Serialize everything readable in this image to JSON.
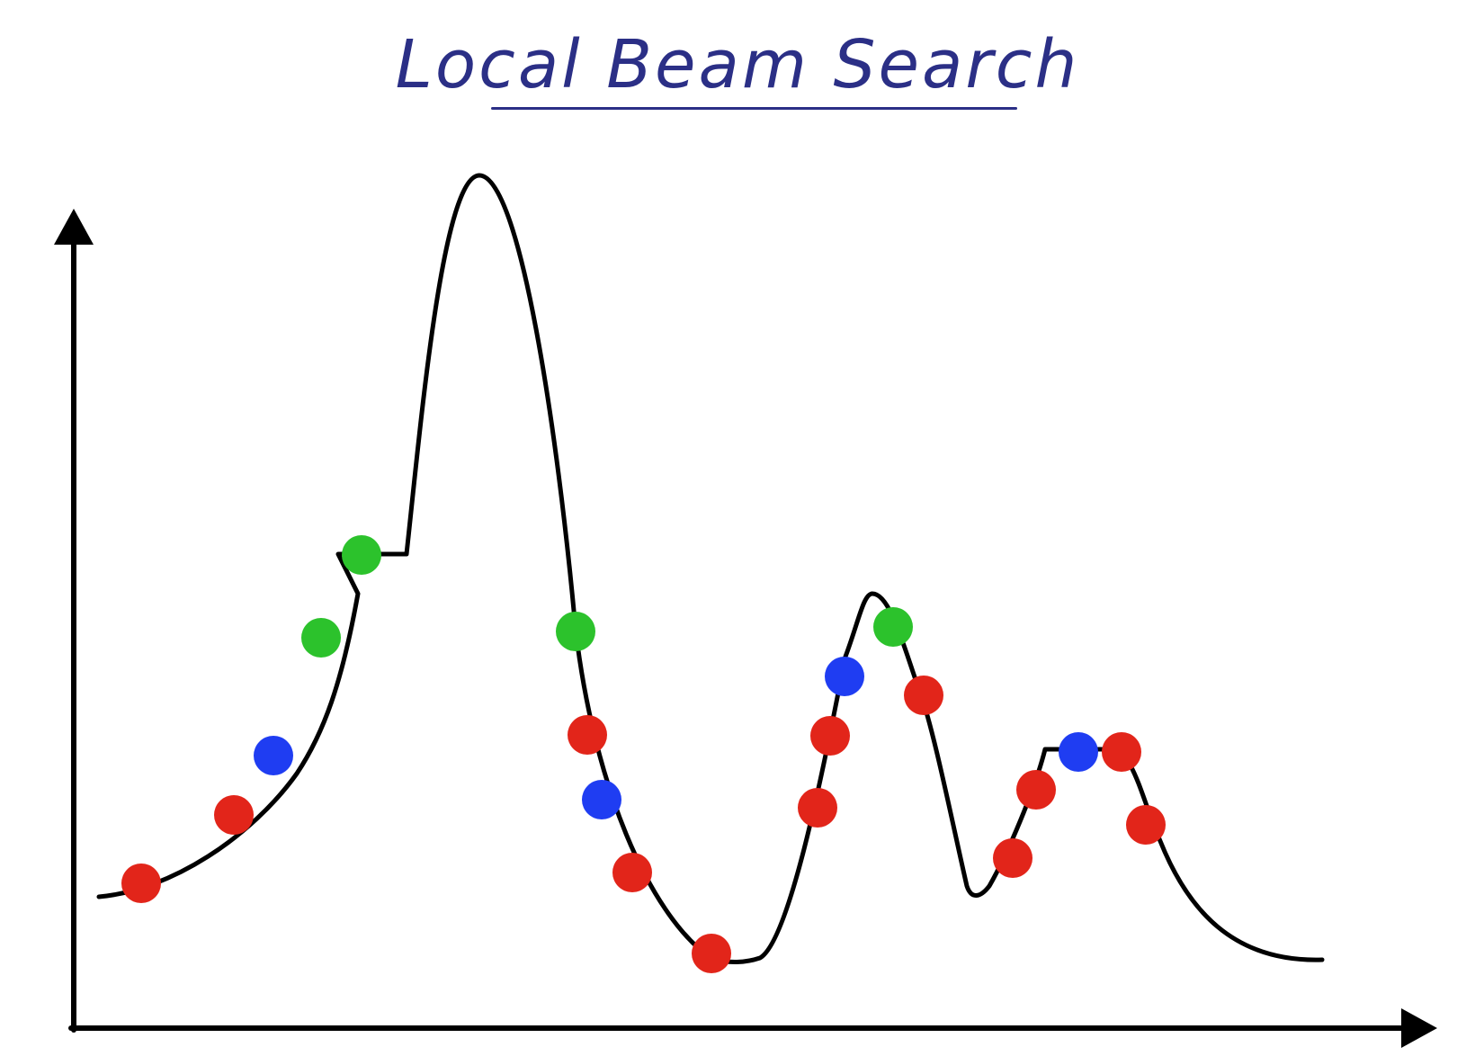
{
  "title": "Local Beam Search",
  "colors": {
    "title": "#2b2f86",
    "curve": "#000000",
    "axes": "#000000",
    "red_state": "#e2251a",
    "blue_state": "#1f3df2",
    "green_state": "#2cc22c"
  },
  "states": [
    {
      "color": "red"
    },
    {
      "color": "red"
    },
    {
      "color": "blue"
    },
    {
      "color": "green"
    },
    {
      "color": "green"
    },
    {
      "color": "green"
    },
    {
      "color": "red"
    },
    {
      "color": "blue"
    },
    {
      "color": "red"
    },
    {
      "color": "red"
    },
    {
      "color": "red"
    },
    {
      "color": "red"
    },
    {
      "color": "red"
    },
    {
      "color": "blue"
    },
    {
      "color": "green"
    },
    {
      "color": "red"
    },
    {
      "color": "red"
    },
    {
      "color": "red"
    },
    {
      "color": "blue"
    },
    {
      "color": "red"
    },
    {
      "color": "red"
    }
  ]
}
